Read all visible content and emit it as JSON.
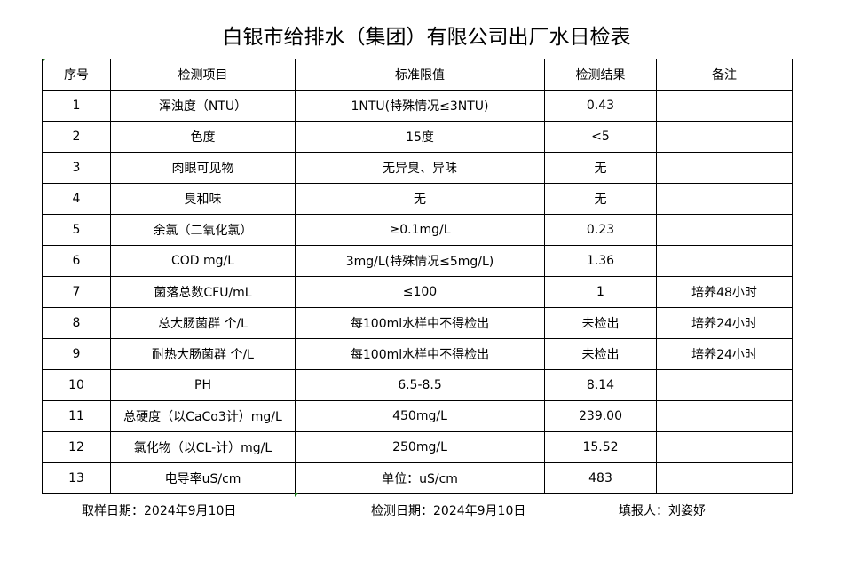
{
  "title": "白银市给排水（集团）有限公司出厂水日检表",
  "headers": [
    "序号",
    "检测项目",
    "标准限值",
    "检测结果",
    "备注"
  ],
  "rows": [
    [
      "1",
      "浑浊度（NTU）",
      "1NTU(特殊情况≤3NTU)",
      "0.43",
      ""
    ],
    [
      "2",
      "色度",
      "15度",
      "<5",
      ""
    ],
    [
      "3",
      "肉眼可见物",
      "无异臭、异味",
      "无",
      ""
    ],
    [
      "4",
      "臭和味",
      "无",
      "无",
      ""
    ],
    [
      "5",
      "余氯（二氧化氯）",
      "≥0.1mg/L",
      "0.23",
      ""
    ],
    [
      "6",
      "COD        mg/L",
      "3mg/L(特殊情况≤5mg/L)",
      "1.36",
      ""
    ],
    [
      "7",
      "菌落总数CFU/mL",
      "≤100",
      "1",
      "培养48小时"
    ],
    [
      "8",
      "总大肠菌群 个/L",
      "每100ml水样中不得检出",
      "未检出",
      "培养24小时"
    ],
    [
      "9",
      "耐热大肠菌群 个/L",
      "每100ml水样中不得检出",
      "未检出",
      "培养24小时"
    ],
    [
      "10",
      "PH",
      "6.5-8.5",
      "8.14",
      ""
    ],
    [
      "11",
      "总硬度（以CaCo3计）mg/L",
      "450mg/L",
      "239.00",
      ""
    ],
    [
      "12",
      "氯化物（以CL-计）mg/L",
      "250mg/L",
      "15.52",
      ""
    ],
    [
      "13",
      "电导率uS/cm",
      "单位：uS/cm",
      "483",
      ""
    ]
  ],
  "footer": {
    "sampling_date": "取样日期：2024年9月10日",
    "test_date": "检测日期：2024年9月10日",
    "reporter": "填报人：刘姿妤"
  }
}
